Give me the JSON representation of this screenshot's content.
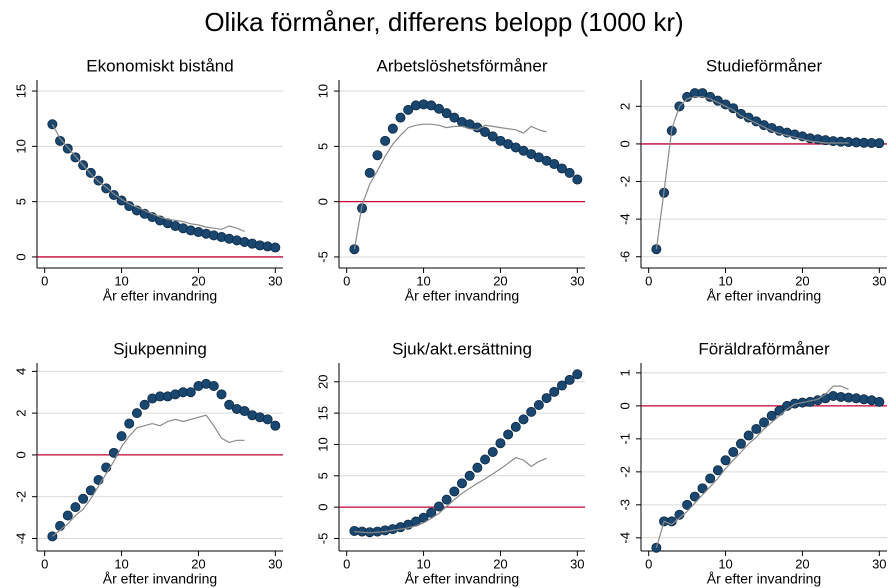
{
  "title": "Olika förmåner, differens belopp (1000 kr)",
  "chart_data": [
    {
      "type": "scatter",
      "title": "Ekonomiskt bistånd",
      "xlabel": "År efter invandring",
      "xlim": [
        -1,
        31
      ],
      "xticks": [
        0,
        10,
        20,
        30
      ],
      "ylim": [
        -1,
        16
      ],
      "yticks": [
        0,
        5,
        10,
        15
      ],
      "grid": true,
      "hline": 0,
      "hline_color": "#c10534",
      "series": [
        {
          "style": "dots",
          "color": "#1a476f",
          "x": [
            1,
            2,
            3,
            4,
            5,
            6,
            7,
            8,
            9,
            10,
            11,
            12,
            13,
            14,
            15,
            16,
            17,
            18,
            19,
            20,
            21,
            22,
            23,
            24,
            25,
            26,
            27,
            28,
            29,
            30
          ],
          "values": [
            12,
            10.5,
            9.8,
            9.0,
            8.3,
            7.6,
            6.9,
            6.2,
            5.6,
            5.1,
            4.6,
            4.2,
            3.9,
            3.6,
            3.3,
            3.05,
            2.8,
            2.6,
            2.4,
            2.25,
            2.1,
            1.95,
            1.8,
            1.65,
            1.5,
            1.35,
            1.2,
            1.05,
            0.95,
            0.85
          ]
        },
        {
          "style": "line",
          "color": "#8a8a8a",
          "x": [
            1,
            2,
            3,
            4,
            5,
            6,
            7,
            8,
            9,
            10,
            11,
            12,
            13,
            14,
            15,
            16,
            17,
            18,
            19,
            20,
            21,
            22,
            23,
            24,
            25,
            26
          ],
          "values": [
            12,
            10.7,
            9.9,
            9.1,
            8.3,
            7.5,
            6.8,
            6.3,
            5.7,
            5.2,
            4.8,
            4.5,
            4.2,
            3.9,
            3.6,
            3.4,
            3.3,
            3.2,
            3.0,
            2.9,
            2.7,
            2.6,
            2.5,
            2.8,
            2.6,
            2.3
          ]
        }
      ]
    },
    {
      "type": "scatter",
      "title": "Arbetslöshetsförmåner",
      "xlabel": "År efter invandring",
      "xlim": [
        -1,
        31
      ],
      "xticks": [
        0,
        10,
        20,
        30
      ],
      "ylim": [
        -6,
        11
      ],
      "yticks": [
        -5,
        0,
        5,
        10
      ],
      "grid": true,
      "hline": 0,
      "hline_color": "#c10534",
      "series": [
        {
          "style": "dots",
          "color": "#1a476f",
          "x": [
            1,
            2,
            3,
            4,
            5,
            6,
            7,
            8,
            9,
            10,
            11,
            12,
            13,
            14,
            15,
            16,
            17,
            18,
            19,
            20,
            21,
            22,
            23,
            24,
            25,
            26,
            27,
            28,
            29,
            30
          ],
          "values": [
            -4.3,
            -0.6,
            2.6,
            4.2,
            5.5,
            6.6,
            7.6,
            8.3,
            8.7,
            8.8,
            8.7,
            8.4,
            8.0,
            7.6,
            7.2,
            7.0,
            6.7,
            6.3,
            5.9,
            5.5,
            5.2,
            4.9,
            4.6,
            4.3,
            4.0,
            3.7,
            3.4,
            3.0,
            2.6,
            2.0
          ]
        },
        {
          "style": "line",
          "color": "#8a8a8a",
          "x": [
            1,
            2,
            3,
            4,
            5,
            6,
            7,
            8,
            9,
            10,
            11,
            12,
            13,
            14,
            15,
            16,
            17,
            18,
            19,
            20,
            21,
            22,
            23,
            24,
            25,
            26
          ],
          "values": [
            -4.3,
            -0.3,
            1.6,
            2.8,
            4.1,
            5.2,
            6.0,
            6.7,
            6.9,
            7.0,
            7.0,
            6.9,
            6.7,
            6.8,
            6.8,
            6.6,
            6.5,
            6.9,
            6.8,
            6.7,
            6.6,
            6.5,
            6.2,
            6.8,
            6.5,
            6.3
          ]
        }
      ]
    },
    {
      "type": "scatter",
      "title": "Studieförmåner",
      "xlabel": "År efter invandring",
      "xlim": [
        -1,
        31
      ],
      "xticks": [
        0,
        10,
        20,
        30
      ],
      "ylim": [
        -6.6,
        3.4
      ],
      "yticks": [
        -6,
        -4,
        -2,
        0,
        2
      ],
      "grid": true,
      "hline": 0,
      "hline_color": "#c10534",
      "series": [
        {
          "style": "dots",
          "color": "#1a476f",
          "x": [
            1,
            2,
            3,
            4,
            5,
            6,
            7,
            8,
            9,
            10,
            11,
            12,
            13,
            14,
            15,
            16,
            17,
            18,
            19,
            20,
            21,
            22,
            23,
            24,
            25,
            26,
            27,
            28,
            29,
            30
          ],
          "values": [
            -5.6,
            -2.6,
            0.7,
            2.0,
            2.5,
            2.7,
            2.7,
            2.5,
            2.3,
            2.1,
            1.9,
            1.6,
            1.4,
            1.2,
            1.0,
            0.85,
            0.7,
            0.6,
            0.5,
            0.4,
            0.3,
            0.25,
            0.2,
            0.15,
            0.12,
            0.1,
            0.08,
            0.06,
            0.05,
            0.04
          ]
        },
        {
          "style": "line",
          "color": "#8a8a8a",
          "x": [
            1,
            2,
            3,
            4,
            5,
            6,
            7,
            8,
            9,
            10,
            11,
            12,
            13,
            14,
            15,
            16,
            17,
            18,
            19,
            20,
            21,
            22,
            23,
            24,
            25,
            26
          ],
          "values": [
            -5.6,
            -2.5,
            0.8,
            2.0,
            2.4,
            2.5,
            2.5,
            2.4,
            2.2,
            2.0,
            1.8,
            1.5,
            1.3,
            1.1,
            0.9,
            0.7,
            0.55,
            0.45,
            0.35,
            0.25,
            0.15,
            0.1,
            0.05,
            0.05,
            0.05,
            0.05
          ]
        }
      ]
    },
    {
      "type": "scatter",
      "title": "Sjukpenning",
      "xlabel": "År efter invandring",
      "xlim": [
        -1,
        31
      ],
      "xticks": [
        0,
        10,
        20,
        30
      ],
      "ylim": [
        -4.6,
        4.4
      ],
      "yticks": [
        -4,
        -2,
        0,
        2,
        4
      ],
      "grid": true,
      "hline": 0,
      "hline_color": "#c10534",
      "series": [
        {
          "style": "dots",
          "color": "#1a476f",
          "x": [
            1,
            2,
            3,
            4,
            5,
            6,
            7,
            8,
            9,
            10,
            11,
            12,
            13,
            14,
            15,
            16,
            17,
            18,
            19,
            20,
            21,
            22,
            23,
            24,
            25,
            26,
            27,
            28,
            29,
            30
          ],
          "values": [
            -3.9,
            -3.4,
            -2.9,
            -2.5,
            -2.1,
            -1.7,
            -1.2,
            -0.6,
            0.1,
            0.9,
            1.5,
            2.0,
            2.4,
            2.7,
            2.8,
            2.8,
            2.9,
            3.0,
            3.0,
            3.3,
            3.4,
            3.3,
            2.9,
            2.4,
            2.2,
            2.1,
            1.9,
            1.8,
            1.7,
            1.4
          ]
        },
        {
          "style": "line",
          "color": "#8a8a8a",
          "x": [
            1,
            2,
            3,
            4,
            5,
            6,
            7,
            8,
            9,
            10,
            11,
            12,
            13,
            14,
            15,
            16,
            17,
            18,
            19,
            20,
            21,
            22,
            23,
            24,
            25,
            26
          ],
          "values": [
            -3.9,
            -3.6,
            -3.3,
            -2.9,
            -2.6,
            -2.1,
            -1.5,
            -0.9,
            -0.3,
            0.4,
            0.9,
            1.3,
            1.4,
            1.5,
            1.4,
            1.6,
            1.7,
            1.6,
            1.7,
            1.8,
            1.9,
            1.4,
            0.8,
            0.6,
            0.7,
            0.7
          ]
        }
      ]
    },
    {
      "type": "scatter",
      "title": "Sjuk/akt.ersättning",
      "xlabel": "År efter invandring",
      "xlim": [
        -1,
        31
      ],
      "xticks": [
        0,
        10,
        20,
        30
      ],
      "ylim": [
        -7,
        23
      ],
      "yticks": [
        -5,
        0,
        5,
        10,
        15,
        20
      ],
      "grid": true,
      "hline": 0,
      "hline_color": "#c10534",
      "series": [
        {
          "style": "dots",
          "color": "#1a476f",
          "x": [
            1,
            2,
            3,
            4,
            5,
            6,
            7,
            8,
            9,
            10,
            11,
            12,
            13,
            14,
            15,
            16,
            17,
            18,
            19,
            20,
            21,
            22,
            23,
            24,
            25,
            26,
            27,
            28,
            29,
            30
          ],
          "values": [
            -3.8,
            -3.9,
            -4.0,
            -3.9,
            -3.7,
            -3.5,
            -3.2,
            -2.8,
            -2.3,
            -1.7,
            -0.9,
            0.1,
            1.2,
            2.5,
            3.8,
            5.0,
            6.3,
            7.6,
            8.8,
            10.2,
            11.6,
            12.8,
            14.0,
            15.2,
            16.3,
            17.4,
            18.4,
            19.4,
            20.3,
            21.2
          ]
        },
        {
          "style": "line",
          "color": "#8a8a8a",
          "x": [
            1,
            2,
            3,
            4,
            5,
            6,
            7,
            8,
            9,
            10,
            11,
            12,
            13,
            14,
            15,
            16,
            17,
            18,
            19,
            20,
            21,
            22,
            23,
            24,
            25,
            26
          ],
          "values": [
            -3.9,
            -4.0,
            -4.1,
            -4.0,
            -3.9,
            -3.7,
            -3.5,
            -3.3,
            -3.0,
            -2.5,
            -1.8,
            -1.0,
            0.1,
            1.2,
            2.2,
            3.0,
            3.8,
            4.5,
            5.3,
            6.1,
            7.0,
            7.9,
            7.5,
            6.5,
            7.3,
            7.8
          ]
        }
      ]
    },
    {
      "type": "scatter",
      "title": "Föräldraförmåner",
      "xlabel": "År efter invandring",
      "xlim": [
        -1,
        31
      ],
      "xticks": [
        0,
        10,
        20,
        30
      ],
      "ylim": [
        -4.4,
        1.3
      ],
      "yticks": [
        -4,
        -3,
        -2,
        -1,
        0,
        1
      ],
      "grid": true,
      "hline": 0,
      "hline_color": "#c10534",
      "series": [
        {
          "style": "dots",
          "color": "#1a476f",
          "x": [
            1,
            2,
            3,
            4,
            5,
            6,
            7,
            8,
            9,
            10,
            11,
            12,
            13,
            14,
            15,
            16,
            17,
            18,
            19,
            20,
            21,
            22,
            23,
            24,
            25,
            26,
            27,
            28,
            29,
            30
          ],
          "values": [
            -4.3,
            -3.5,
            -3.5,
            -3.3,
            -3.0,
            -2.75,
            -2.5,
            -2.2,
            -1.95,
            -1.65,
            -1.4,
            -1.15,
            -0.9,
            -0.7,
            -0.5,
            -0.3,
            -0.15,
            0.0,
            0.07,
            0.1,
            0.12,
            0.17,
            0.23,
            0.3,
            0.27,
            0.25,
            0.23,
            0.2,
            0.17,
            0.12
          ]
        },
        {
          "style": "line",
          "color": "#8a8a8a",
          "x": [
            1,
            2,
            3,
            4,
            5,
            6,
            7,
            8,
            9,
            10,
            11,
            12,
            13,
            14,
            15,
            16,
            17,
            18,
            19,
            20,
            21,
            22,
            23,
            24,
            25,
            26
          ],
          "values": [
            -4.3,
            -3.5,
            -3.6,
            -3.4,
            -3.2,
            -2.95,
            -2.7,
            -2.45,
            -2.2,
            -1.9,
            -1.65,
            -1.4,
            -1.15,
            -0.95,
            -0.7,
            -0.5,
            -0.3,
            -0.1,
            0.05,
            0.1,
            0.15,
            0.2,
            0.35,
            0.6,
            0.6,
            0.5
          ]
        }
      ]
    }
  ]
}
